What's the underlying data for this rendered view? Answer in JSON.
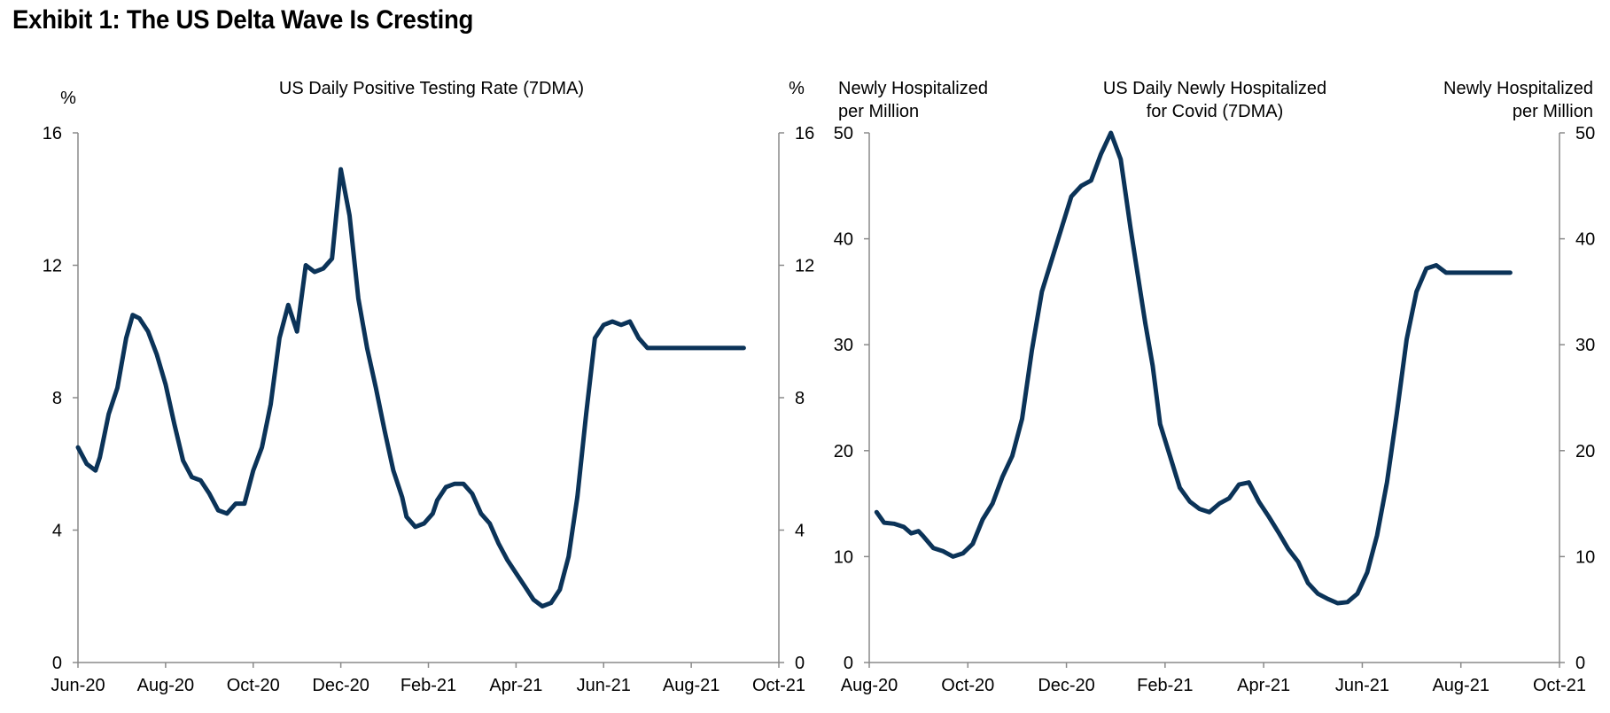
{
  "title": "Exhibit 1: The US Delta Wave Is Cresting",
  "chart_data": [
    {
      "type": "line",
      "title": "US Daily Positive Testing Rate (7DMA)",
      "ylabel_left": "%",
      "ylabel_right": "%",
      "ylim": [
        0,
        16
      ],
      "yticks": [
        0,
        4,
        8,
        12,
        16
      ],
      "xlim": [
        0,
        16
      ],
      "xticks": [
        "Jun-20",
        "Aug-20",
        "Oct-20",
        "Dec-20",
        "Feb-21",
        "Apr-21",
        "Jun-21",
        "Aug-21",
        "Oct-21"
      ],
      "line_color": "#0b3358",
      "series": [
        {
          "name": "US Daily Positive Testing Rate (7DMA)",
          "x": [
            0,
            0.2,
            0.4,
            0.5,
            0.7,
            0.9,
            1.1,
            1.25,
            1.4,
            1.6,
            1.8,
            2.0,
            2.2,
            2.4,
            2.6,
            2.8,
            3.0,
            3.2,
            3.4,
            3.6,
            3.8,
            4.0,
            4.2,
            4.4,
            4.6,
            4.8,
            5.0,
            5.2,
            5.4,
            5.6,
            5.8,
            6.0,
            6.2,
            6.4,
            6.6,
            6.8,
            7.0,
            7.2,
            7.4,
            7.5,
            7.7,
            7.9,
            8.1,
            8.2,
            8.4,
            8.6,
            8.8,
            9.0,
            9.2,
            9.4,
            9.6,
            9.8,
            10.0,
            10.2,
            10.4,
            10.6,
            10.8,
            11.0,
            11.2,
            11.4,
            11.6,
            11.8,
            12.0,
            12.2,
            12.4,
            12.6,
            12.8,
            13.0,
            13.2,
            13.4,
            13.6,
            13.8,
            14.0,
            14.2,
            14.4,
            14.6,
            14.8,
            15.0,
            15.2
          ],
          "values": [
            6.5,
            6.0,
            5.8,
            6.2,
            7.5,
            8.3,
            9.8,
            10.5,
            10.4,
            10.0,
            9.3,
            8.4,
            7.2,
            6.1,
            5.6,
            5.5,
            5.1,
            4.6,
            4.5,
            4.8,
            4.8,
            5.8,
            6.5,
            7.8,
            9.8,
            10.8,
            10.0,
            12.0,
            11.8,
            11.9,
            12.2,
            14.9,
            13.5,
            11.0,
            9.5,
            8.3,
            7.0,
            5.8,
            5.0,
            4.4,
            4.1,
            4.2,
            4.5,
            4.9,
            5.3,
            5.4,
            5.4,
            5.1,
            4.5,
            4.2,
            3.6,
            3.1,
            2.7,
            2.3,
            1.9,
            1.7,
            1.8,
            2.2,
            3.2,
            5.0,
            7.5,
            9.8,
            10.2,
            10.3,
            10.2,
            10.3,
            9.8,
            9.5,
            9.5,
            9.5,
            9.5,
            9.5,
            9.5,
            9.5,
            9.5,
            9.5,
            9.5,
            9.5,
            9.5
          ]
        }
      ]
    },
    {
      "type": "line",
      "title": "US Daily Newly Hospitalized for Covid (7DMA)",
      "title_lines": [
        "US Daily Newly Hospitalized",
        "for Covid (7DMA)"
      ],
      "ylabel_left": "Newly Hospitalized per Million",
      "ylabel_left_lines": [
        "Newly Hospitalized",
        "per Million"
      ],
      "ylabel_right": "Newly Hospitalized per Million",
      "ylabel_right_lines": [
        "Newly Hospitalized",
        "per Million"
      ],
      "ylim": [
        0,
        50
      ],
      "yticks": [
        0,
        10,
        20,
        30,
        40,
        50
      ],
      "xlim": [
        0,
        14
      ],
      "xticks": [
        "Aug-20",
        "Oct-20",
        "Dec-20",
        "Feb-21",
        "Apr-21",
        "Jun-21",
        "Aug-21",
        "Oct-21"
      ],
      "line_color": "#0b3358",
      "series": [
        {
          "name": "US Daily Newly Hospitalized for Covid (7DMA)",
          "x": [
            0.15,
            0.3,
            0.5,
            0.7,
            0.85,
            1.0,
            1.1,
            1.3,
            1.5,
            1.7,
            1.9,
            2.1,
            2.3,
            2.5,
            2.7,
            2.9,
            3.1,
            3.3,
            3.5,
            3.7,
            3.9,
            4.1,
            4.3,
            4.5,
            4.7,
            4.9,
            5.1,
            5.3,
            5.5,
            5.6,
            5.75,
            5.9,
            6.1,
            6.3,
            6.5,
            6.7,
            6.9,
            7.1,
            7.3,
            7.5,
            7.7,
            7.9,
            8.1,
            8.3,
            8.5,
            8.7,
            8.9,
            9.1,
            9.3,
            9.5,
            9.7,
            9.9,
            10.1,
            10.3,
            10.5,
            10.7,
            10.9,
            11.1,
            11.3,
            11.5,
            11.7,
            11.9,
            12.1,
            12.3,
            12.5,
            12.7,
            12.9,
            13.0
          ],
          "values": [
            14.2,
            13.2,
            13.1,
            12.8,
            12.2,
            12.4,
            11.9,
            10.8,
            10.5,
            10.0,
            10.3,
            11.2,
            13.5,
            15.0,
            17.5,
            19.5,
            23.0,
            29.5,
            35.0,
            38.0,
            41.0,
            44.0,
            45.0,
            45.5,
            48.0,
            50.0,
            47.5,
            41.0,
            35.0,
            32.0,
            28.0,
            22.5,
            19.5,
            16.5,
            15.2,
            14.5,
            14.2,
            15.0,
            15.5,
            16.8,
            17.0,
            15.2,
            13.8,
            12.3,
            10.7,
            9.5,
            7.5,
            6.5,
            6.0,
            5.6,
            5.7,
            6.5,
            8.5,
            12.0,
            17.0,
            23.5,
            30.5,
            35.0,
            37.2,
            37.5,
            36.8,
            36.8,
            36.8,
            36.8,
            36.8,
            36.8,
            36.8,
            36.8
          ]
        }
      ]
    }
  ]
}
